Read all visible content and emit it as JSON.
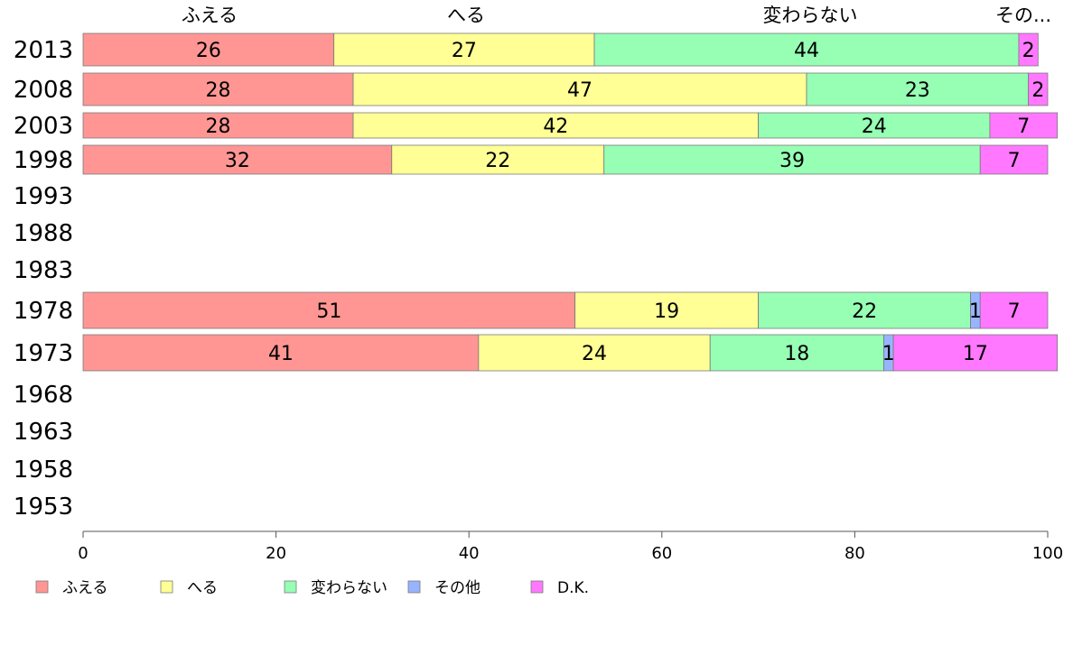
{
  "chart_data": {
    "type": "bar",
    "orientation": "horizontal",
    "stacked": true,
    "xlim": [
      0,
      100
    ],
    "x_ticks": [
      0,
      20,
      40,
      60,
      80,
      100
    ],
    "categories": [
      "2013",
      "2008",
      "2003",
      "1998",
      "1993",
      "1988",
      "1983",
      "1978",
      "1973",
      "1968",
      "1963",
      "1958",
      "1953"
    ],
    "series": [
      {
        "name": "ふえる",
        "color": "#ff9694",
        "values": [
          26,
          28,
          28,
          32,
          null,
          null,
          null,
          51,
          41,
          null,
          null,
          null,
          null
        ]
      },
      {
        "name": "へる",
        "color": "#ffff96",
        "values": [
          27,
          47,
          42,
          22,
          null,
          null,
          null,
          19,
          24,
          null,
          null,
          null,
          null
        ]
      },
      {
        "name": "変わらない",
        "color": "#96ffb4",
        "values": [
          44,
          23,
          24,
          39,
          null,
          null,
          null,
          22,
          18,
          null,
          null,
          null,
          null
        ]
      },
      {
        "name": "その他",
        "color": "#96b4ff",
        "values": [
          0,
          0,
          0,
          0,
          null,
          null,
          null,
          1,
          1,
          null,
          null,
          null,
          null
        ]
      },
      {
        "name": "D.K.",
        "color": "#ff78ff",
        "values": [
          2,
          2,
          7,
          7,
          null,
          null,
          null,
          7,
          17,
          null,
          null,
          null,
          null
        ]
      }
    ],
    "top_labels": [
      "ふえる",
      "へる",
      "変わらない",
      "その..."
    ],
    "legend": {
      "placement": "bottom-left"
    },
    "grid": false
  }
}
